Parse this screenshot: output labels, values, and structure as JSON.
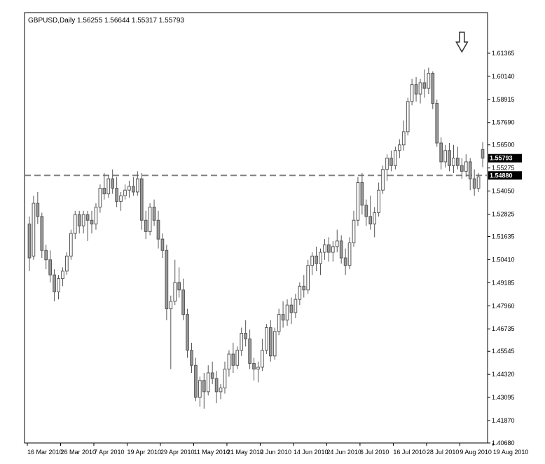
{
  "chart_data": {
    "type": "candlestick",
    "title": "GBPUSD,Daily 1.56255 1.56644 1.55317 1.55793",
    "symbol": "GBPUSD",
    "timeframe": "Daily",
    "ylim": [
      1.4068,
      1.6259
    ],
    "y_ticks": [
      "1.61365",
      "1.60140",
      "1.58915",
      "1.57690",
      "1.56500",
      "1.55275",
      "1.54050",
      "1.52825",
      "1.51635",
      "1.50410",
      "1.49185",
      "1.47960",
      "1.46735",
      "1.45545",
      "1.44320",
      "1.43095",
      "1.41870",
      "1.40680"
    ],
    "x_ticks": [
      {
        "label": "16 Mar 2010",
        "index": 0
      },
      {
        "label": "26 Mar 2010",
        "index": 8
      },
      {
        "label": "7 Apr 2010",
        "index": 16
      },
      {
        "label": "19 Apr 2010",
        "index": 24
      },
      {
        "label": "29 Apr 2010",
        "index": 32
      },
      {
        "label": "11 May 2010",
        "index": 40
      },
      {
        "label": "21 May 2010",
        "index": 48
      },
      {
        "label": "2 Jun 2010",
        "index": 56
      },
      {
        "label": "14 Jun 2010",
        "index": 64
      },
      {
        "label": "24 Jun 2010",
        "index": 72
      },
      {
        "label": "6 Jul 2010",
        "index": 80
      },
      {
        "label": "16 Jul 2010",
        "index": 88
      },
      {
        "label": "28 Jul 2010",
        "index": 96
      },
      {
        "label": "9 Aug 2010",
        "index": 104
      },
      {
        "label": "19 Aug 2010",
        "index": 112
      }
    ],
    "horizontal_line": {
      "value": 1.5488,
      "label": "1.54880",
      "style": "dashed"
    },
    "price_label": {
      "value": 1.55793,
      "label": "1.55793"
    },
    "arrow_marker": {
      "index": 104,
      "direction": "down"
    },
    "candles": [
      [
        1.523,
        1.527,
        1.498,
        1.505
      ],
      [
        1.506,
        1.538,
        1.504,
        1.534
      ],
      [
        1.534,
        1.54,
        1.523,
        1.527
      ],
      [
        1.527,
        1.529,
        1.505,
        1.509
      ],
      [
        1.509,
        1.512,
        1.499,
        1.504
      ],
      [
        1.504,
        1.509,
        1.492,
        1.496
      ],
      [
        1.496,
        1.499,
        1.482,
        1.487
      ],
      [
        1.487,
        1.496,
        1.483,
        1.494
      ],
      [
        1.494,
        1.5,
        1.49,
        1.498
      ],
      [
        1.498,
        1.508,
        1.496,
        1.506
      ],
      [
        1.506,
        1.52,
        1.504,
        1.518
      ],
      [
        1.518,
        1.53,
        1.515,
        1.528
      ],
      [
        1.528,
        1.53,
        1.518,
        1.522
      ],
      [
        1.522,
        1.53,
        1.518,
        1.528
      ],
      [
        1.528,
        1.53,
        1.514,
        1.525
      ],
      [
        1.525,
        1.53,
        1.518,
        1.523
      ],
      [
        1.523,
        1.534,
        1.52,
        1.532
      ],
      [
        1.532,
        1.544,
        1.529,
        1.542
      ],
      [
        1.542,
        1.55,
        1.536,
        1.539
      ],
      [
        1.539,
        1.549,
        1.537,
        1.547
      ],
      [
        1.547,
        1.552,
        1.539,
        1.542
      ],
      [
        1.542,
        1.548,
        1.532,
        1.535
      ],
      [
        1.535,
        1.54,
        1.53,
        1.538
      ],
      [
        1.538,
        1.544,
        1.536,
        1.541
      ],
      [
        1.541,
        1.546,
        1.537,
        1.543
      ],
      [
        1.543,
        1.548,
        1.538,
        1.54
      ],
      [
        1.54,
        1.551,
        1.538,
        1.547
      ],
      [
        1.547,
        1.55,
        1.52,
        1.525
      ],
      [
        1.525,
        1.53,
        1.515,
        1.519
      ],
      [
        1.519,
        1.534,
        1.517,
        1.532
      ],
      [
        1.532,
        1.536,
        1.522,
        1.525
      ],
      [
        1.525,
        1.53,
        1.51,
        1.515
      ],
      [
        1.515,
        1.518,
        1.505,
        1.509
      ],
      [
        1.509,
        1.512,
        1.472,
        1.478
      ],
      [
        1.478,
        1.485,
        1.446,
        1.482
      ],
      [
        1.482,
        1.504,
        1.48,
        1.492
      ],
      [
        1.492,
        1.5,
        1.484,
        1.488
      ],
      [
        1.488,
        1.494,
        1.472,
        1.475
      ],
      [
        1.475,
        1.478,
        1.452,
        1.456
      ],
      [
        1.456,
        1.46,
        1.444,
        1.448
      ],
      [
        1.448,
        1.452,
        1.429,
        1.431
      ],
      [
        1.431,
        1.442,
        1.426,
        1.44
      ],
      [
        1.44,
        1.444,
        1.425,
        1.434
      ],
      [
        1.434,
        1.448,
        1.432,
        1.444
      ],
      [
        1.444,
        1.45,
        1.438,
        1.441
      ],
      [
        1.441,
        1.445,
        1.428,
        1.434
      ],
      [
        1.434,
        1.438,
        1.43,
        1.436
      ],
      [
        1.436,
        1.45,
        1.433,
        1.446
      ],
      [
        1.446,
        1.456,
        1.442,
        1.454
      ],
      [
        1.454,
        1.46,
        1.444,
        1.448
      ],
      [
        1.448,
        1.458,
        1.446,
        1.456
      ],
      [
        1.456,
        1.468,
        1.453,
        1.465
      ],
      [
        1.465,
        1.472,
        1.458,
        1.462
      ],
      [
        1.462,
        1.467,
        1.446,
        1.449
      ],
      [
        1.449,
        1.452,
        1.44,
        1.446
      ],
      [
        1.446,
        1.45,
        1.439,
        1.447
      ],
      [
        1.447,
        1.462,
        1.445,
        1.456
      ],
      [
        1.456,
        1.47,
        1.454,
        1.468
      ],
      [
        1.468,
        1.472,
        1.45,
        1.453
      ],
      [
        1.453,
        1.468,
        1.451,
        1.466
      ],
      [
        1.466,
        1.478,
        1.464,
        1.475
      ],
      [
        1.475,
        1.482,
        1.468,
        1.472
      ],
      [
        1.472,
        1.483,
        1.469,
        1.48
      ],
      [
        1.48,
        1.484,
        1.47,
        1.476
      ],
      [
        1.476,
        1.486,
        1.473,
        1.483
      ],
      [
        1.483,
        1.492,
        1.48,
        1.49
      ],
      [
        1.49,
        1.496,
        1.484,
        1.488
      ],
      [
        1.488,
        1.504,
        1.486,
        1.501
      ],
      [
        1.501,
        1.508,
        1.496,
        1.506
      ],
      [
        1.506,
        1.511,
        1.498,
        1.502
      ],
      [
        1.502,
        1.51,
        1.496,
        1.508
      ],
      [
        1.508,
        1.515,
        1.504,
        1.512
      ],
      [
        1.512,
        1.516,
        1.503,
        1.508
      ],
      [
        1.508,
        1.514,
        1.503,
        1.511
      ],
      [
        1.511,
        1.52,
        1.508,
        1.514
      ],
      [
        1.514,
        1.517,
        1.502,
        1.505
      ],
      [
        1.505,
        1.51,
        1.496,
        1.501
      ],
      [
        1.501,
        1.516,
        1.499,
        1.513
      ],
      [
        1.513,
        1.53,
        1.511,
        1.525
      ],
      [
        1.525,
        1.548,
        1.522,
        1.545
      ],
      [
        1.545,
        1.55,
        1.528,
        1.533
      ],
      [
        1.533,
        1.536,
        1.522,
        1.527
      ],
      [
        1.527,
        1.538,
        1.52,
        1.523
      ],
      [
        1.523,
        1.532,
        1.516,
        1.529
      ],
      [
        1.529,
        1.545,
        1.527,
        1.541
      ],
      [
        1.541,
        1.554,
        1.539,
        1.552
      ],
      [
        1.552,
        1.56,
        1.546,
        1.558
      ],
      [
        1.558,
        1.562,
        1.551,
        1.554
      ],
      [
        1.554,
        1.564,
        1.552,
        1.562
      ],
      [
        1.562,
        1.568,
        1.558,
        1.565
      ],
      [
        1.565,
        1.578,
        1.562,
        1.572
      ],
      [
        1.572,
        1.59,
        1.57,
        1.588
      ],
      [
        1.588,
        1.6,
        1.586,
        1.597
      ],
      [
        1.597,
        1.601,
        1.588,
        1.592
      ],
      [
        1.592,
        1.6,
        1.587,
        1.598
      ],
      [
        1.598,
        1.605,
        1.59,
        1.595
      ],
      [
        1.595,
        1.606,
        1.592,
        1.603
      ],
      [
        1.603,
        1.604,
        1.584,
        1.587
      ],
      [
        1.587,
        1.589,
        1.564,
        1.566
      ],
      [
        1.566,
        1.569,
        1.552,
        1.556
      ],
      [
        1.556,
        1.565,
        1.553,
        1.562
      ],
      [
        1.562,
        1.566,
        1.551,
        1.554
      ],
      [
        1.554,
        1.565,
        1.55,
        1.558
      ],
      [
        1.558,
        1.564,
        1.552,
        1.554
      ],
      [
        1.554,
        1.558,
        1.547,
        1.551
      ],
      [
        1.551,
        1.56,
        1.548,
        1.556
      ],
      [
        1.556,
        1.558,
        1.541,
        1.547
      ],
      [
        1.547,
        1.552,
        1.538,
        1.542
      ],
      [
        1.542,
        1.55,
        1.54,
        1.548
      ],
      [
        1.56255,
        1.56644,
        1.55317,
        1.55793
      ]
    ]
  }
}
